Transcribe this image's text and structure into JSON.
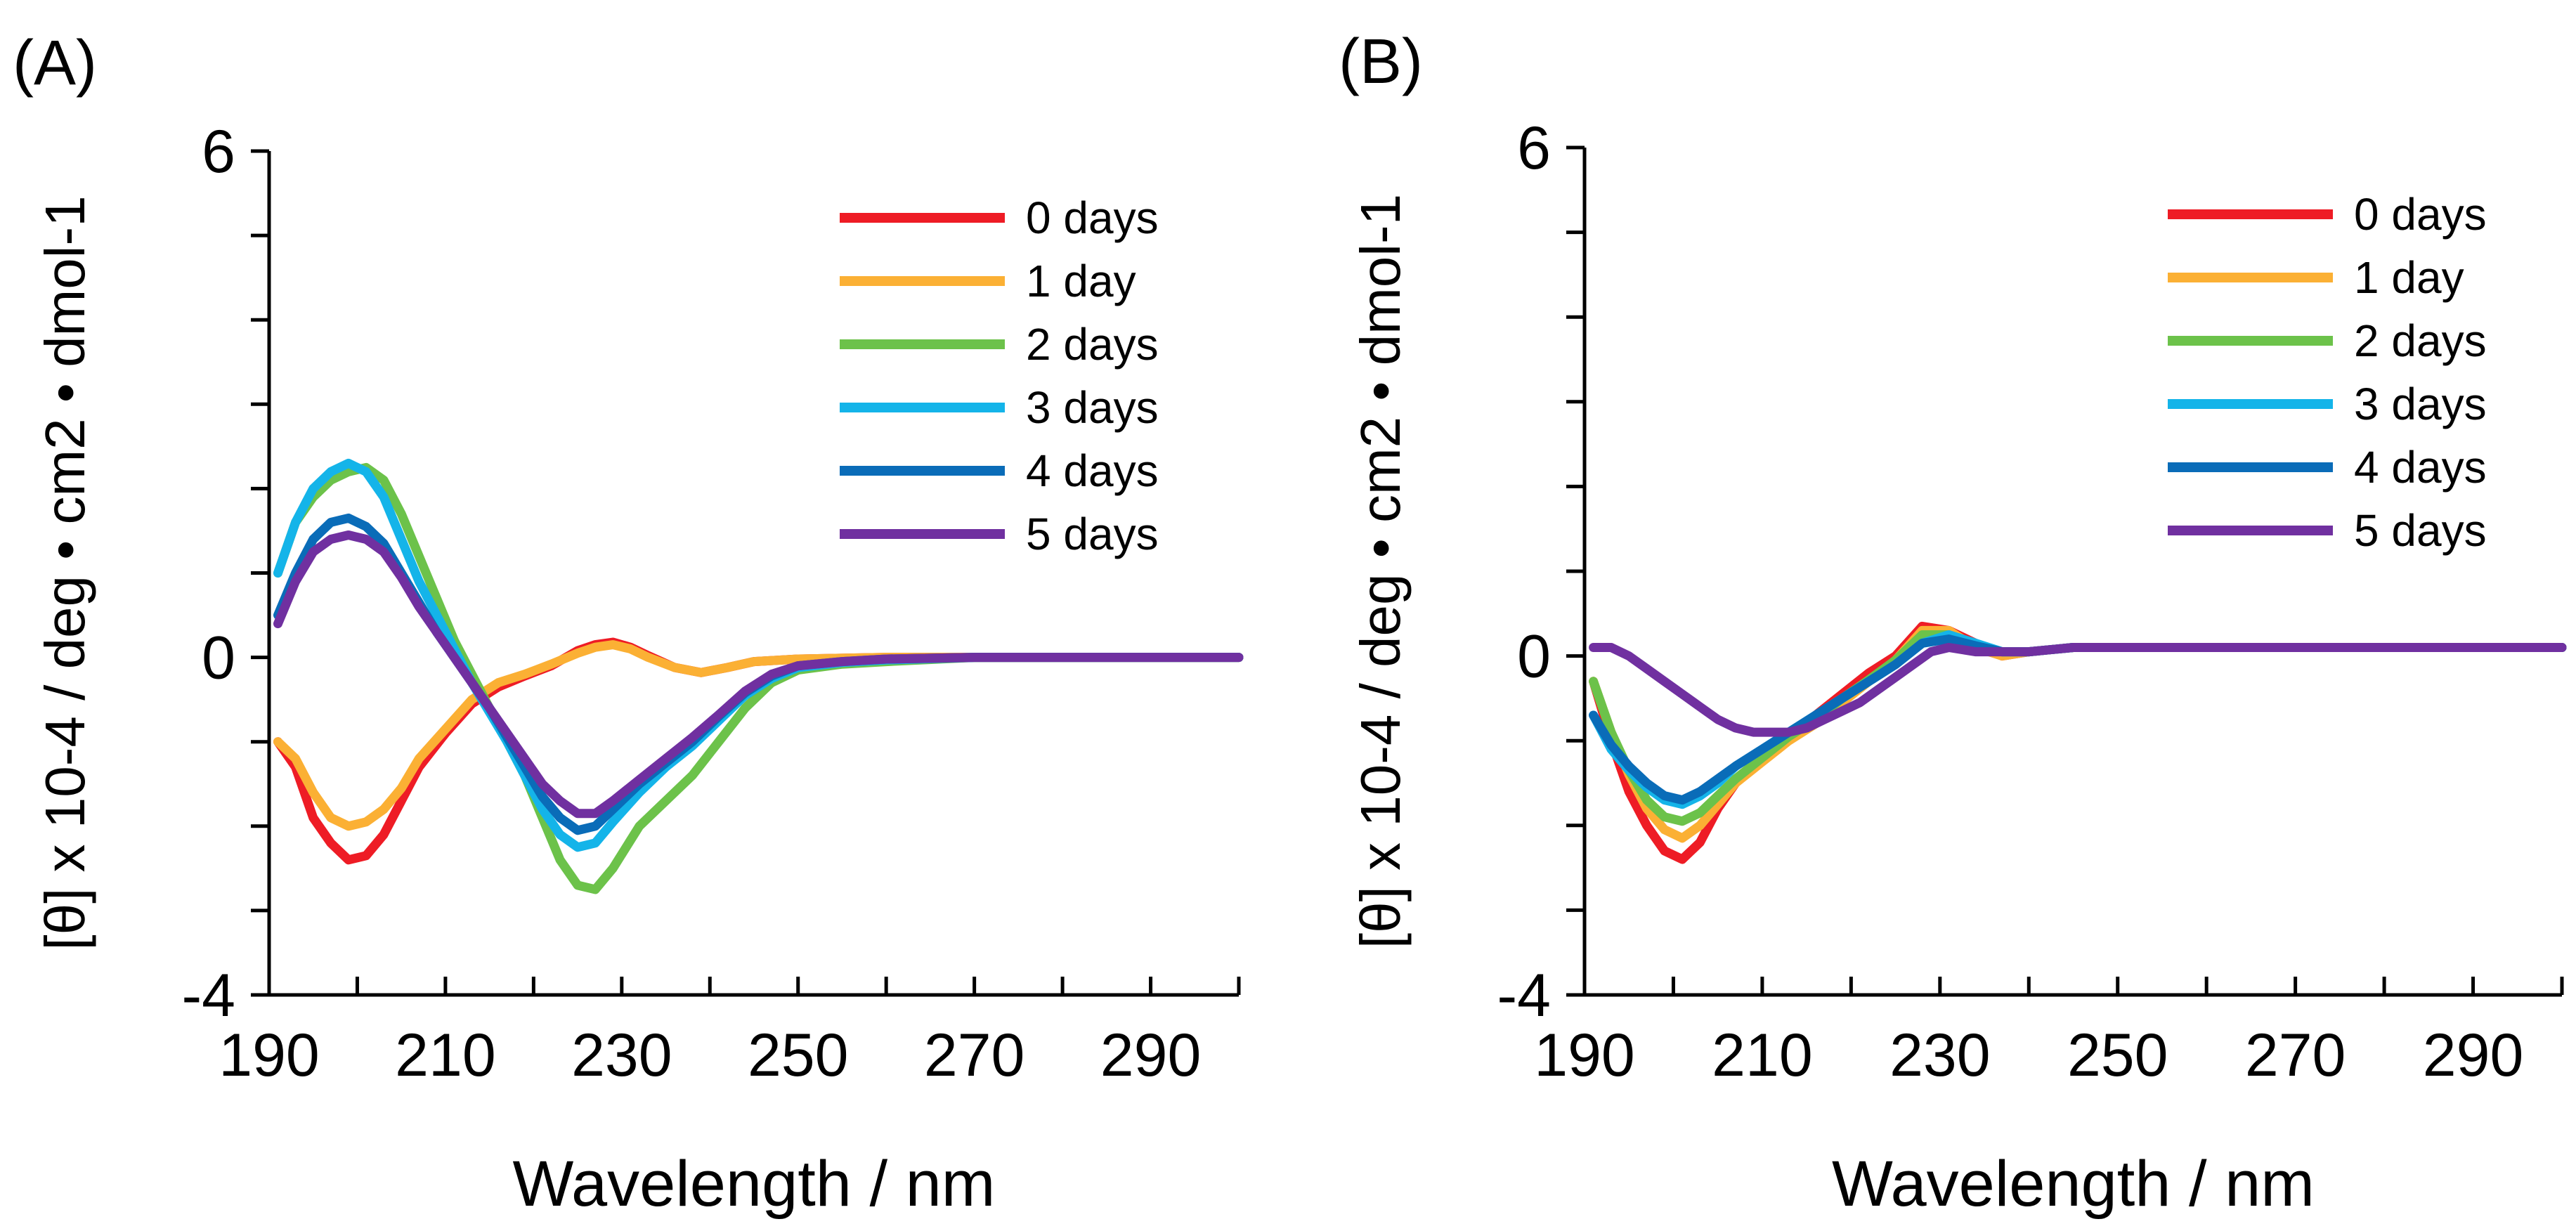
{
  "chart_data": [
    {
      "type": "line",
      "panel_label": "(A)",
      "xlabel": "Wavelength / nm",
      "ylabel": "[θ] x 10-4 / deg • cm2 • dmol-1",
      "xlim": [
        190,
        300
      ],
      "ylim": [
        -4,
        6
      ],
      "x_ticks": [
        190,
        210,
        230,
        250,
        270,
        290
      ],
      "y_tick_labels": [
        "6",
        "0",
        "-4"
      ],
      "legend_position": "top-right",
      "series": [
        {
          "name": "0 days",
          "color": "#ee1c25",
          "x": [
            191,
            193,
            195,
            197,
            199,
            201,
            203,
            205,
            207,
            210,
            213,
            216,
            219,
            222,
            225,
            227,
            229,
            231,
            233,
            236,
            239,
            242,
            245,
            250,
            260,
            280,
            300
          ],
          "y": [
            -1.0,
            -1.3,
            -1.9,
            -2.2,
            -2.4,
            -2.35,
            -2.1,
            -1.7,
            -1.3,
            -0.9,
            -0.55,
            -0.35,
            -0.22,
            -0.1,
            0.08,
            0.15,
            0.18,
            0.12,
            0.02,
            -0.12,
            -0.18,
            -0.12,
            -0.05,
            -0.02,
            0.0,
            0.0,
            0.0
          ]
        },
        {
          "name": "1 day",
          "color": "#fbb034",
          "x": [
            191,
            193,
            195,
            197,
            199,
            201,
            203,
            205,
            207,
            210,
            213,
            216,
            219,
            222,
            225,
            227,
            229,
            231,
            233,
            236,
            239,
            242,
            245,
            250,
            260,
            280,
            300
          ],
          "y": [
            -1.0,
            -1.2,
            -1.6,
            -1.9,
            -2.0,
            -1.95,
            -1.8,
            -1.55,
            -1.2,
            -0.85,
            -0.5,
            -0.3,
            -0.2,
            -0.08,
            0.05,
            0.12,
            0.15,
            0.1,
            0.0,
            -0.12,
            -0.18,
            -0.12,
            -0.05,
            -0.02,
            0.0,
            0.0,
            0.0
          ]
        },
        {
          "name": "2 days",
          "color": "#6cc24a",
          "x": [
            191,
            193,
            195,
            197,
            199,
            201,
            203,
            205,
            207,
            209,
            211,
            213,
            215,
            217,
            219,
            221,
            223,
            225,
            227,
            229,
            232,
            235,
            238,
            241,
            244,
            247,
            250,
            255,
            260,
            270,
            280,
            300
          ],
          "y": [
            1.0,
            1.6,
            1.9,
            2.1,
            2.2,
            2.25,
            2.1,
            1.7,
            1.2,
            0.7,
            0.2,
            -0.2,
            -0.6,
            -1.0,
            -1.4,
            -1.9,
            -2.4,
            -2.7,
            -2.75,
            -2.5,
            -2.0,
            -1.7,
            -1.4,
            -1.0,
            -0.6,
            -0.3,
            -0.15,
            -0.08,
            -0.05,
            0.0,
            0.0,
            0.0
          ]
        },
        {
          "name": "3 days",
          "color": "#14b4e9",
          "x": [
            191,
            193,
            195,
            197,
            199,
            201,
            203,
            205,
            207,
            209,
            211,
            213,
            215,
            217,
            219,
            221,
            223,
            225,
            227,
            229,
            232,
            235,
            238,
            241,
            244,
            247,
            250,
            255,
            260,
            270,
            280,
            300
          ],
          "y": [
            1.0,
            1.6,
            2.0,
            2.2,
            2.3,
            2.2,
            1.9,
            1.4,
            0.9,
            0.5,
            0.1,
            -0.3,
            -0.65,
            -1.0,
            -1.4,
            -1.8,
            -2.1,
            -2.25,
            -2.2,
            -1.95,
            -1.6,
            -1.3,
            -1.05,
            -0.75,
            -0.45,
            -0.25,
            -0.12,
            -0.06,
            -0.03,
            0.0,
            0.0,
            0.0
          ]
        },
        {
          "name": "4 days",
          "color": "#0a6cb8",
          "x": [
            191,
            193,
            195,
            197,
            199,
            201,
            203,
            205,
            207,
            209,
            211,
            213,
            215,
            217,
            219,
            221,
            223,
            225,
            227,
            229,
            232,
            235,
            238,
            241,
            244,
            247,
            250,
            255,
            260,
            270,
            280,
            300
          ],
          "y": [
            0.5,
            1.0,
            1.4,
            1.6,
            1.65,
            1.55,
            1.35,
            1.0,
            0.65,
            0.3,
            0.0,
            -0.3,
            -0.6,
            -0.95,
            -1.3,
            -1.65,
            -1.9,
            -2.05,
            -2.0,
            -1.8,
            -1.5,
            -1.25,
            -1.0,
            -0.7,
            -0.42,
            -0.22,
            -0.1,
            -0.05,
            -0.02,
            0.0,
            0.0,
            0.0
          ]
        },
        {
          "name": "5 days",
          "color": "#7030a0",
          "x": [
            191,
            193,
            195,
            197,
            199,
            201,
            203,
            205,
            207,
            209,
            211,
            213,
            215,
            217,
            219,
            221,
            223,
            225,
            227,
            229,
            232,
            235,
            238,
            241,
            244,
            247,
            250,
            255,
            260,
            270,
            280,
            300
          ],
          "y": [
            0.4,
            0.9,
            1.25,
            1.4,
            1.45,
            1.4,
            1.25,
            0.95,
            0.6,
            0.3,
            0.0,
            -0.3,
            -0.6,
            -0.9,
            -1.2,
            -1.5,
            -1.7,
            -1.85,
            -1.85,
            -1.7,
            -1.45,
            -1.2,
            -0.95,
            -0.68,
            -0.4,
            -0.2,
            -0.1,
            -0.05,
            -0.02,
            0.0,
            0.0,
            0.0
          ]
        }
      ]
    },
    {
      "type": "line",
      "panel_label": "(B)",
      "xlabel": "Wavelength / nm",
      "ylabel": "[θ] x 10-4 / deg • cm2 • dmol-1",
      "xlim": [
        190,
        300
      ],
      "ylim": [
        -4,
        6
      ],
      "x_ticks": [
        190,
        210,
        230,
        250,
        270,
        290
      ],
      "y_tick_labels": [
        "6",
        "0",
        "-4"
      ],
      "legend_position": "top-right",
      "series": [
        {
          "name": "0 days",
          "color": "#ee1c25",
          "x": [
            191,
            193,
            195,
            197,
            199,
            201,
            203,
            205,
            207,
            210,
            213,
            216,
            219,
            222,
            225,
            228,
            231,
            234,
            237,
            240,
            245,
            250,
            260,
            280,
            300
          ],
          "y": [
            -0.3,
            -1.0,
            -1.6,
            -2.0,
            -2.3,
            -2.4,
            -2.2,
            -1.8,
            -1.5,
            -1.2,
            -0.95,
            -0.7,
            -0.45,
            -0.2,
            0.0,
            0.35,
            0.3,
            0.15,
            0.0,
            0.05,
            0.1,
            0.1,
            0.1,
            0.1,
            0.1
          ]
        },
        {
          "name": "1 day",
          "color": "#fbb034",
          "x": [
            191,
            193,
            195,
            197,
            199,
            201,
            203,
            205,
            207,
            210,
            213,
            216,
            219,
            222,
            225,
            228,
            231,
            234,
            237,
            240,
            245,
            250,
            260,
            280,
            300
          ],
          "y": [
            -0.3,
            -0.9,
            -1.4,
            -1.8,
            -2.05,
            -2.15,
            -2.0,
            -1.75,
            -1.5,
            -1.25,
            -1.0,
            -0.8,
            -0.55,
            -0.3,
            -0.05,
            0.3,
            0.3,
            0.1,
            0.0,
            0.05,
            0.1,
            0.1,
            0.1,
            0.1,
            0.1
          ]
        },
        {
          "name": "2 days",
          "color": "#6cc24a",
          "x": [
            191,
            193,
            195,
            197,
            199,
            201,
            203,
            205,
            207,
            210,
            213,
            216,
            219,
            222,
            225,
            228,
            231,
            234,
            237,
            240,
            245,
            250,
            260,
            280,
            300
          ],
          "y": [
            -0.3,
            -0.9,
            -1.35,
            -1.7,
            -1.9,
            -1.95,
            -1.85,
            -1.65,
            -1.45,
            -1.2,
            -0.95,
            -0.75,
            -0.5,
            -0.28,
            -0.05,
            0.25,
            0.25,
            0.1,
            0.05,
            0.05,
            0.1,
            0.1,
            0.1,
            0.1,
            0.1
          ]
        },
        {
          "name": "3 days",
          "color": "#14b4e9",
          "x": [
            191,
            193,
            195,
            197,
            199,
            201,
            203,
            205,
            207,
            210,
            213,
            216,
            219,
            222,
            225,
            228,
            231,
            234,
            237,
            240,
            245,
            250,
            260,
            280,
            300
          ],
          "y": [
            -0.7,
            -1.1,
            -1.35,
            -1.55,
            -1.7,
            -1.75,
            -1.65,
            -1.5,
            -1.3,
            -1.1,
            -0.9,
            -0.7,
            -0.5,
            -0.3,
            -0.1,
            0.15,
            0.25,
            0.15,
            0.05,
            0.05,
            0.1,
            0.1,
            0.1,
            0.1,
            0.1
          ]
        },
        {
          "name": "4 days",
          "color": "#0a6cb8",
          "x": [
            191,
            193,
            195,
            197,
            199,
            201,
            203,
            205,
            207,
            210,
            213,
            216,
            219,
            222,
            225,
            228,
            231,
            234,
            237,
            240,
            245,
            250,
            260,
            280,
            300
          ],
          "y": [
            -0.7,
            -1.05,
            -1.3,
            -1.5,
            -1.65,
            -1.7,
            -1.6,
            -1.45,
            -1.3,
            -1.1,
            -0.9,
            -0.7,
            -0.5,
            -0.3,
            -0.1,
            0.15,
            0.2,
            0.12,
            0.05,
            0.05,
            0.1,
            0.1,
            0.1,
            0.1,
            0.1
          ]
        },
        {
          "name": "5 days",
          "color": "#7030a0",
          "x": [
            191,
            193,
            195,
            197,
            199,
            201,
            203,
            205,
            207,
            209,
            211,
            213,
            215,
            217,
            219,
            221,
            223,
            225,
            227,
            229,
            231,
            234,
            237,
            240,
            245,
            250,
            260,
            280,
            300
          ],
          "y": [
            0.1,
            0.1,
            0.0,
            -0.15,
            -0.3,
            -0.45,
            -0.6,
            -0.75,
            -0.85,
            -0.9,
            -0.9,
            -0.9,
            -0.85,
            -0.75,
            -0.65,
            -0.55,
            -0.4,
            -0.25,
            -0.1,
            0.05,
            0.1,
            0.05,
            0.05,
            0.05,
            0.1,
            0.1,
            0.1,
            0.1,
            0.1
          ]
        }
      ]
    }
  ]
}
